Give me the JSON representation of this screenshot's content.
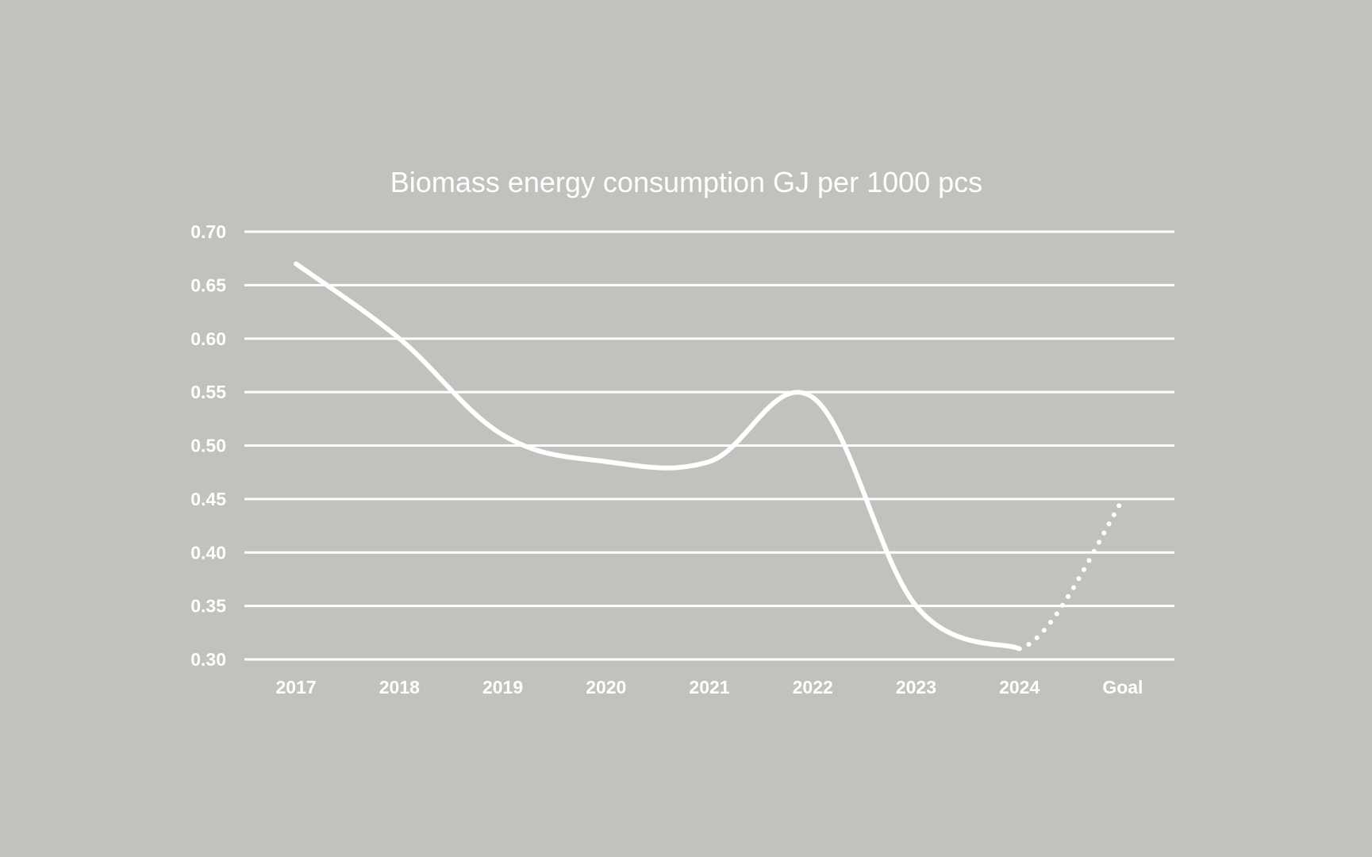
{
  "chart_data": {
    "type": "line",
    "title": "Biomass energy consumption GJ per 1000 pcs",
    "xlabel": "",
    "ylabel": "",
    "categories": [
      "2017",
      "2018",
      "2019",
      "2020",
      "2021",
      "2022",
      "2023",
      "2024",
      "Goal"
    ],
    "ylim": [
      0.3,
      0.7
    ],
    "yticks": [
      "0.70",
      "0.65",
      "0.60",
      "0.55",
      "0.50",
      "0.45",
      "0.40",
      "0.35",
      "0.30"
    ],
    "grid": true,
    "legend": "none",
    "series": [
      {
        "values": [
          0.67,
          0.6,
          0.51,
          0.485,
          0.485,
          0.545,
          0.35,
          0.31,
          0.45
        ],
        "solid_until_category": "2024",
        "projected_segment_style": "dotted"
      }
    ],
    "colors": {
      "background": "#c2c1be",
      "line": "#ffffff",
      "grid": "#ffffff",
      "text": "#ffffff"
    }
  }
}
